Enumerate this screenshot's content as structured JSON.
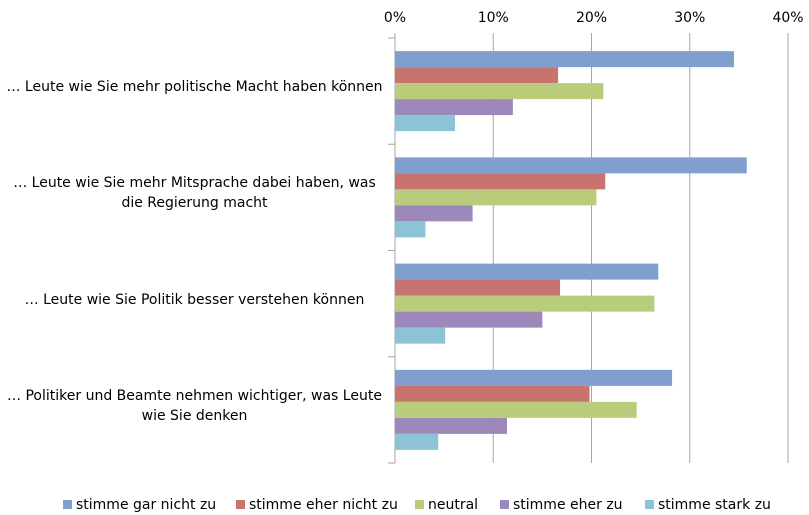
{
  "chart_data": {
    "type": "bar",
    "orientation": "horizontal",
    "categories": [
      "… Leute wie Sie mehr politische Macht haben können",
      "… Leute wie Sie mehr Mitsprache dabei haben, was die Regierung macht",
      "… Leute wie Sie Politik besser verstehen können",
      "… Politiker und Beamte nehmen wichtiger, was Leute wie Sie denken"
    ],
    "series": [
      {
        "name": "stimme gar nicht zu",
        "color": "#7f9fcf",
        "values": [
          34.5,
          35.8,
          26.8,
          28.2
        ]
      },
      {
        "name": "stimme eher nicht zu",
        "color": "#c9736f",
        "values": [
          16.6,
          21.4,
          16.8,
          19.8
        ]
      },
      {
        "name": "neutral",
        "color": "#b9cc7b",
        "values": [
          21.2,
          20.5,
          26.4,
          24.6
        ]
      },
      {
        "name": "stimme eher zu",
        "color": "#9c88bb",
        "values": [
          12.0,
          7.9,
          15.0,
          11.4
        ]
      },
      {
        "name": "stimme stark zu",
        "color": "#8cc3d6",
        "values": [
          6.1,
          3.1,
          5.1,
          4.4
        ]
      }
    ],
    "xlim": [
      0,
      40
    ],
    "xticks": [
      {
        "value": 0,
        "label": "0%"
      },
      {
        "value": 10,
        "label": "10%"
      },
      {
        "value": 20,
        "label": "20%"
      },
      {
        "value": 30,
        "label": "30%"
      },
      {
        "value": 40,
        "label": "40%"
      }
    ],
    "grid": true,
    "legend": "bottom"
  }
}
